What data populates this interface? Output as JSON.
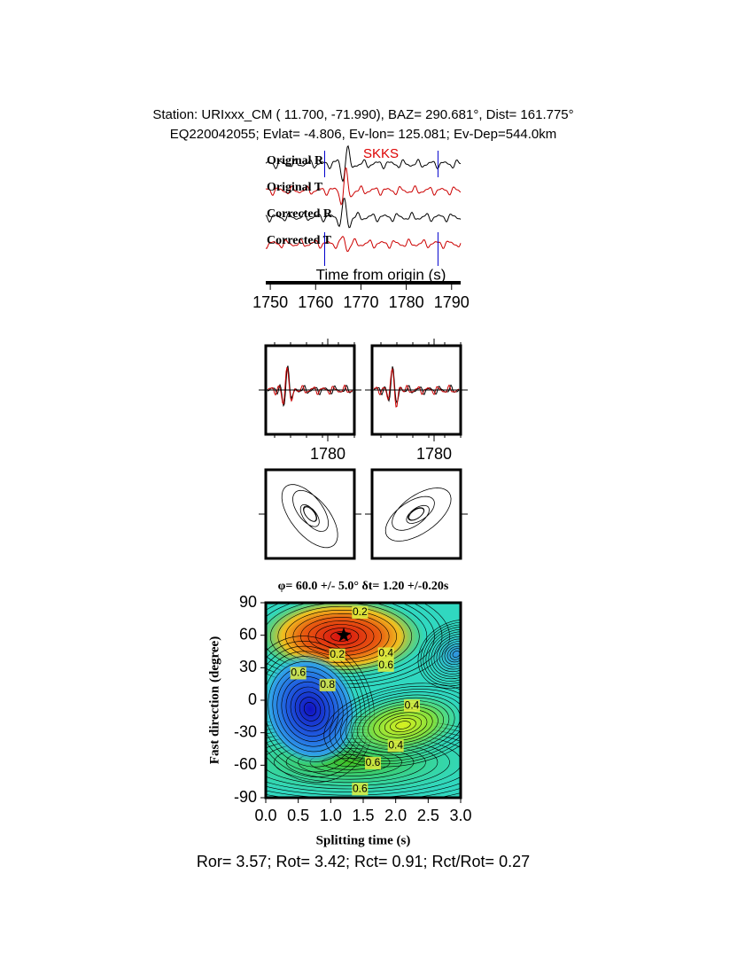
{
  "header": {
    "line1": "Station: URIxxx_CM (  11.700,  -71.990), BAZ=  290.681°, Dist=  161.775°",
    "line2": "EQ220042055; Evlat=  -4.806, Ev-lon= 125.081; Ev-Dep=544.0km"
  },
  "chart_data": [
    {
      "type": "waveform",
      "traces": [
        {
          "name": "Original R",
          "color": "#000000"
        },
        {
          "name": "Original T",
          "color": "#cc0000"
        },
        {
          "name": "Corrected R",
          "color": "#000000"
        },
        {
          "name": "Corrected T",
          "color": "#cc0000"
        }
      ],
      "phase": "SKKS",
      "phase_color": "#dd0000",
      "xlabel": "Time from origin (s)",
      "xlim": [
        1749,
        1792
      ],
      "xticks": [
        1750,
        1760,
        1770,
        1780,
        1790
      ],
      "window": [
        1762,
        1787
      ],
      "window_color": "#0000cc"
    },
    {
      "type": "waveform-zoom",
      "xlim": [
        1766,
        1786
      ],
      "xticks": [
        1780
      ]
    },
    {
      "type": "waveform-zoom",
      "xlim": [
        1766,
        1786
      ],
      "xticks": [
        1780
      ]
    },
    {
      "type": "contour",
      "title": "φ= 60.0 +/- 5.0° δt= 1.20 +/-0.20s",
      "xlabel": "Splitting time (s)",
      "ylabel": "Fast direction (degree)",
      "xlim": [
        0,
        3
      ],
      "ylim": [
        -90,
        90
      ],
      "xticks": [
        {
          "value": 0,
          "label": "0.0"
        },
        0.5,
        {
          "value": 1,
          "label": "1.0"
        },
        1.5,
        {
          "value": 2,
          "label": "2.0"
        },
        2.5,
        {
          "value": 3,
          "label": "3.0"
        }
      ],
      "yticks": [
        -90,
        -60,
        -30,
        0,
        30,
        60,
        90
      ],
      "best": {
        "x": 1.2,
        "y": 60
      },
      "contour_labels": [
        {
          "text": "0.2",
          "x": 1.45,
          "y": 81
        },
        {
          "text": "0.2",
          "x": 1.1,
          "y": 42
        },
        {
          "text": "0.4",
          "x": 1.85,
          "y": 43
        },
        {
          "text": "0.4",
          "x": 2.25,
          "y": -5
        },
        {
          "text": "0.4",
          "x": 2.0,
          "y": -42
        },
        {
          "text": "0.6",
          "x": 0.5,
          "y": 25
        },
        {
          "text": "0.6",
          "x": 1.85,
          "y": 32
        },
        {
          "text": "0.6",
          "x": 1.65,
          "y": -58
        },
        {
          "text": "0.6",
          "x": 1.45,
          "y": -82
        },
        {
          "text": "0.8",
          "x": 0.95,
          "y": 14
        }
      ]
    }
  ],
  "footer": "Ror= 3.57; Rot= 3.42; Rct= 0.91; Rct/Rot= 0.27"
}
